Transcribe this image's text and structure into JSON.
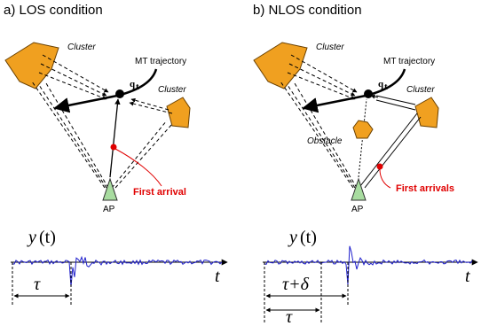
{
  "left": {
    "title": "a) LOS condition",
    "cluster_top": "Cluster",
    "cluster_right": "Cluster",
    "trajectory": "MT trajectory",
    "q_label": "q",
    "q_sub": "t",
    "first_arrival": "First arrival",
    "ap": "AP",
    "signal_y": "y",
    "signal_arg": "(t)",
    "axis_t": "t",
    "tau": "τ"
  },
  "right": {
    "title": "b) NLOS condition",
    "cluster_top": "Cluster",
    "cluster_right": "Cluster",
    "trajectory": "MT trajectory",
    "q_label": "q",
    "q_sub": "t",
    "obstacle": "Obstacle",
    "first_arrivals": "First arrivals",
    "ap": "AP",
    "signal_y": "y",
    "signal_arg": "(t)",
    "axis_t": "t",
    "tau_delta": "τ+δ",
    "tau": "τ"
  },
  "colors": {
    "cluster": "#f0a020",
    "ap": "#a8dca0",
    "signal": "#2020cc",
    "highlight": "#e00000"
  }
}
